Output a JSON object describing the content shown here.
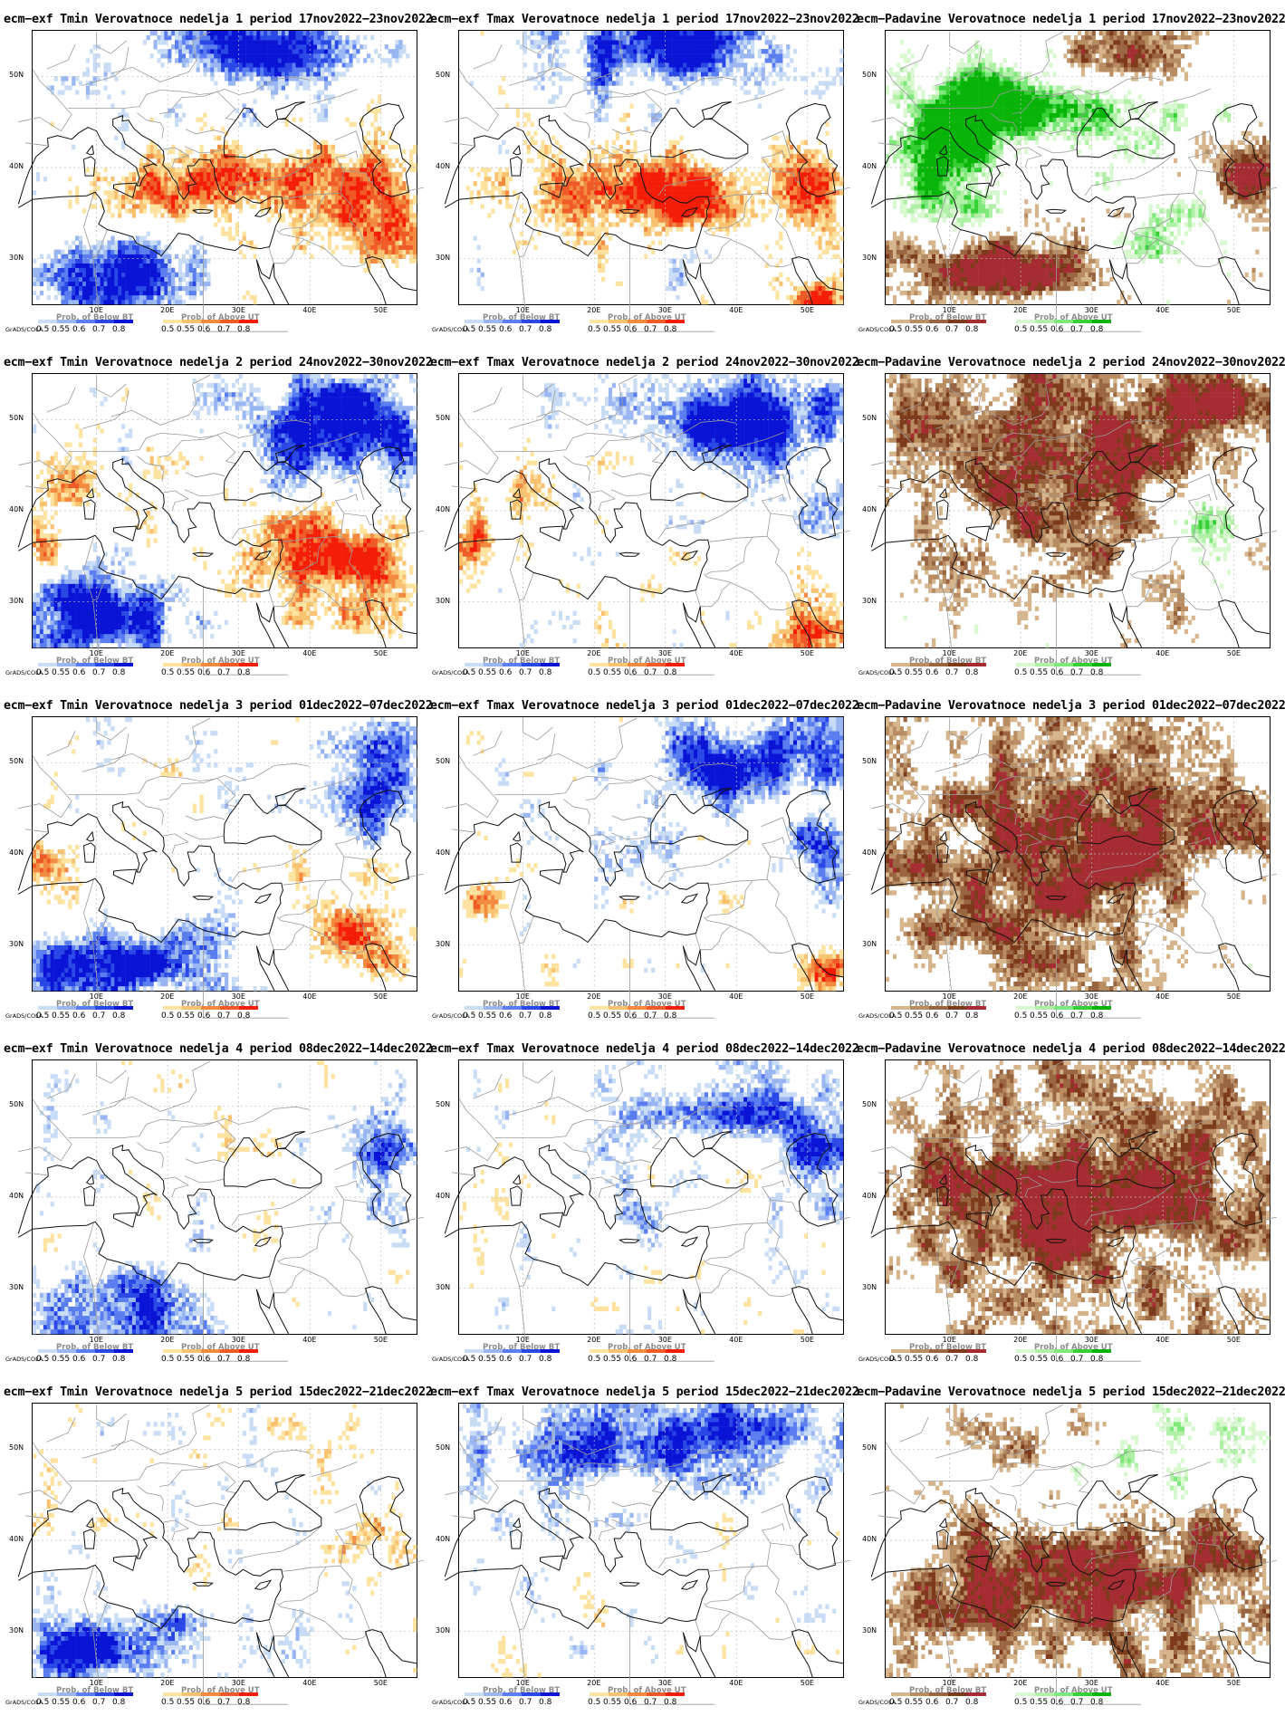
{
  "credit": "GrADS/COLA",
  "lat_labels": [
    "50N",
    "40N",
    "30N"
  ],
  "lon_labels": [
    "10E",
    "20E",
    "30E",
    "40E",
    "50E"
  ],
  "legend_ticks": [
    "0.5",
    "0.55",
    "0.6",
    "0.7",
    "0.8"
  ],
  "legend_titles": {
    "below": "Prob. of Below BT",
    "above": "Prob. of Above UT"
  },
  "colors": {
    "blue": [
      "#c8dcf5",
      "#9ab6f2",
      "#5a7ef0",
      "#2a48e6",
      "#0a14d6"
    ],
    "red": [
      "#fde2a0",
      "#f8c270",
      "#f28a40",
      "#ef5a26",
      "#f41e08"
    ],
    "brown": [
      "#d6b48c",
      "#b98d62",
      "#9a6541",
      "#7e3b1c",
      "#a52c32"
    ],
    "green": [
      "#d8f8d0",
      "#b0f0a6",
      "#7ee87a",
      "#36d036",
      "#08b408"
    ],
    "coast": "#111111",
    "border": "#9a9a9a",
    "gridline": "#bbbbbb"
  },
  "rows": [
    {
      "week": "1",
      "period": "17nov2022−23nov2022",
      "titles": [
        "ecm−exf Tmin Verovatnoce nedelja 1 period 17nov2022−23nov2022",
        "ecm−exf Tmax Verovatnoce nedelja 1 period 17nov2022−23nov2022",
        "ecm−Padavine Verovatnoce nedelja 1 period 17nov2022−23nov2022"
      ]
    },
    {
      "week": "2",
      "period": "24nov2022−30nov2022",
      "titles": [
        "ecm−exf Tmin Verovatnoce nedelja 2 period 24nov2022−30nov2022",
        "ecm−exf Tmax Verovatnoce nedelja 2 period 24nov2022−30nov2022",
        "ecm−Padavine Verovatnoce nedelja 2 period 24nov2022−30nov2022"
      ]
    },
    {
      "week": "3",
      "period": "01dec2022−07dec2022",
      "titles": [
        "ecm−exf Tmin Verovatnoce nedelja 3 period 01dec2022−07dec2022",
        "ecm−exf Tmax Verovatnoce nedelja 3 period 01dec2022−07dec2022",
        "ecm−Padavine Verovatnoce nedelja 3 period 01dec2022−07dec2022"
      ]
    },
    {
      "week": "4",
      "period": "08dec2022−14dec2022",
      "titles": [
        "ecm−exf Tmin Verovatnoce nedelja 4 period 08dec2022−14dec2022",
        "ecm−exf Tmax Verovatnoce nedelja 4 period 08dec2022−14dec2022",
        "ecm−Padavine Verovatnoce nedelja 4 period 08dec2022−14dec2022"
      ]
    },
    {
      "week": "5",
      "period": "15dec2022−21dec2022",
      "titles": [
        "ecm−exf Tmin Verovatnoce nedelja 5 period 15dec2022−21dec2022",
        "ecm−exf Tmax Verovatnoce nedelja 5 period 15dec2022−21dec2022",
        "ecm−Padavine Verovatnoce nedelja 5 period 15dec2022−21dec2022"
      ]
    }
  ],
  "columns": [
    {
      "variable": "Tmin",
      "below_palette": "blue",
      "above_palette": "red"
    },
    {
      "variable": "Tmax",
      "below_palette": "blue",
      "above_palette": "red"
    },
    {
      "variable": "Padavine",
      "below_palette": "brown",
      "above_palette": "green"
    }
  ]
}
